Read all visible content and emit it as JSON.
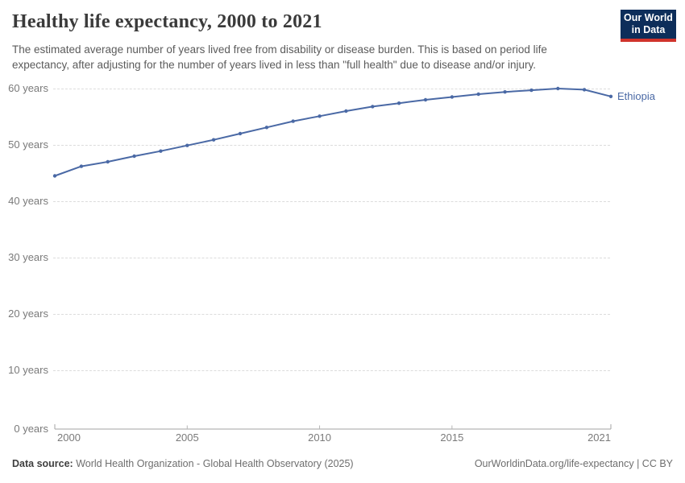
{
  "header": {
    "title": "Healthy life expectancy, 2000 to 2021",
    "subtitle": "The estimated average number of years lived free from disability or disease burden. This is based on period life expectancy, after adjusting for the number of years lived in less than \"full health\" due to disease and/or injury."
  },
  "logo": {
    "line1": "Our World",
    "line2": "in Data",
    "bg_color": "#0d2e5a",
    "stripe_color": "#d0342c",
    "text_color": "#ffffff"
  },
  "chart_data": {
    "type": "line",
    "title": "Healthy life expectancy, 2000 to 2021",
    "xlabel": "",
    "ylabel": "years",
    "xlim": [
      2000,
      2021
    ],
    "ylim": [
      0,
      60
    ],
    "grid": "dashed horizontal",
    "legend_position": "end-of-line label",
    "x": [
      2000,
      2001,
      2002,
      2003,
      2004,
      2005,
      2006,
      2007,
      2008,
      2009,
      2010,
      2011,
      2012,
      2013,
      2014,
      2015,
      2016,
      2017,
      2018,
      2019,
      2020,
      2021
    ],
    "series": [
      {
        "name": "Ethiopia",
        "color": "#4a69a5",
        "values": [
          44.5,
          46.2,
          47.0,
          48.0,
          48.9,
          49.9,
          50.9,
          52.0,
          53.1,
          54.2,
          55.1,
          56.0,
          56.8,
          57.4,
          58.0,
          58.5,
          59.0,
          59.4,
          59.7,
          60.0,
          59.8,
          58.6
        ]
      }
    ],
    "y_ticks": [
      {
        "v": 0,
        "label": "0 years"
      },
      {
        "v": 10,
        "label": "10 years"
      },
      {
        "v": 20,
        "label": "20 years"
      },
      {
        "v": 30,
        "label": "30 years"
      },
      {
        "v": 40,
        "label": "40 years"
      },
      {
        "v": 50,
        "label": "50 years"
      },
      {
        "v": 60,
        "label": "60 years"
      }
    ],
    "x_ticks": [
      {
        "v": 2000,
        "label": "2000"
      },
      {
        "v": 2005,
        "label": "2005"
      },
      {
        "v": 2010,
        "label": "2010"
      },
      {
        "v": 2015,
        "label": "2015"
      },
      {
        "v": 2021,
        "label": "2021"
      }
    ]
  },
  "footer": {
    "source_label": "Data source:",
    "source_text": "World Health Organization - Global Health Observatory (2025)",
    "url": "OurWorldinData.org/life-expectancy",
    "separator": " | ",
    "license": "CC BY"
  }
}
